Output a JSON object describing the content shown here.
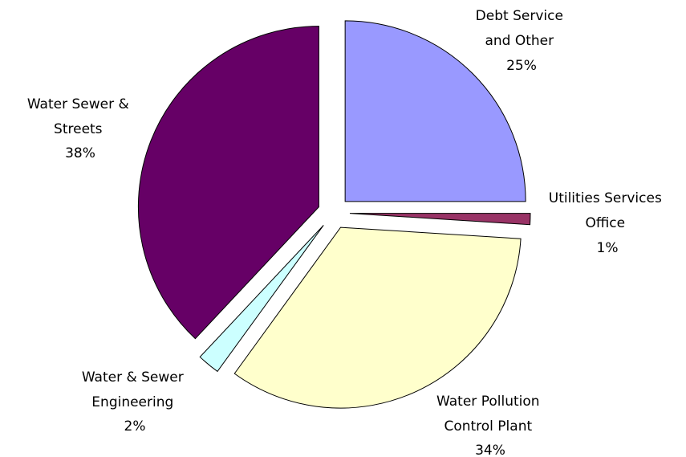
{
  "chart_data": {
    "type": "pie",
    "title": "",
    "legend": "none",
    "start_angle_deg": 0,
    "direction": "clockwise",
    "exploded": true,
    "slices": [
      {
        "label_lines": [
          "Debt Service",
          "and Other"
        ],
        "pct_label": "25%",
        "value": 25,
        "color": "#9999FF"
      },
      {
        "label_lines": [
          "Utilities Services",
          "Office"
        ],
        "pct_label": "1%",
        "value": 1,
        "color": "#993366"
      },
      {
        "label_lines": [
          "Water Pollution",
          "Control Plant"
        ],
        "pct_label": "34%",
        "value": 34,
        "color": "#FFFFCC"
      },
      {
        "label_lines": [
          "Water & Sewer",
          "Engineering"
        ],
        "pct_label": "2%",
        "value": 2,
        "color": "#CCFFFF"
      },
      {
        "label_lines": [
          "Water Sewer &",
          "Streets"
        ],
        "pct_label": "38%",
        "value": 38,
        "color": "#660066"
      }
    ]
  }
}
